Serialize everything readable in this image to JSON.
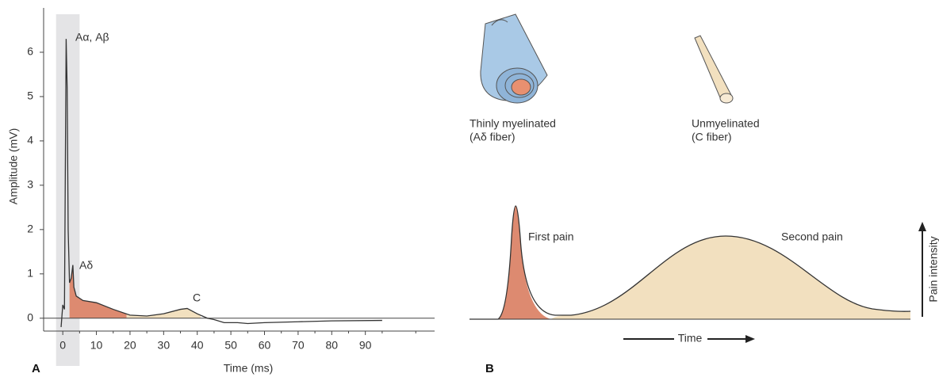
{
  "chart_data": [
    {
      "type": "line",
      "panel_label": "A",
      "x_label": "Time (ms)",
      "y_label": "Amplitude (mV)",
      "x": [
        -0.5,
        0,
        0.5,
        1,
        1.3,
        1.6,
        2,
        2.5,
        3,
        3.3,
        4,
        6,
        10,
        15,
        20,
        25,
        30,
        35,
        37,
        40,
        43,
        45,
        48,
        52,
        55,
        60,
        70,
        80,
        95
      ],
      "values": [
        -0.2,
        0.3,
        0.2,
        6.3,
        5.2,
        2,
        0.8,
        0.9,
        1.2,
        0.7,
        0.5,
        0.4,
        0.35,
        0.2,
        0.07,
        0.05,
        0.1,
        0.2,
        0.22,
        0.1,
        0,
        -0.03,
        -0.1,
        -0.1,
        -0.12,
        -0.1,
        -0.08,
        -0.06,
        -0.05
      ],
      "color": "#333333",
      "xlim": [
        -5.7,
        110.6
      ],
      "ylim": [
        -0.29,
        7
      ],
      "xticks": [
        0,
        10,
        20,
        30,
        40,
        50,
        60,
        70,
        80,
        90
      ],
      "yticks": [
        0,
        1,
        2,
        3,
        4,
        5,
        6
      ],
      "highlight_x": [
        -2,
        5
      ],
      "shaded_regions": [
        {
          "x": [
            2,
            19
          ],
          "color": "#dd8a70"
        },
        {
          "x": [
            19,
            41
          ],
          "color": "#f2e0bf"
        }
      ],
      "annotations": [
        "Aα, Aβ",
        "Aδ",
        "C"
      ]
    }
  ],
  "panel_b": {
    "label": "B",
    "fibers": [
      {
        "line1": "Thinly myelinated",
        "line2": "(Aδ fiber)"
      },
      {
        "line1": "Unmyelinated",
        "line2": "(C fiber)"
      }
    ],
    "curves": [
      "First pain",
      "Second pain"
    ],
    "x_axis": "Time",
    "y_axis": "Pain intensity"
  }
}
